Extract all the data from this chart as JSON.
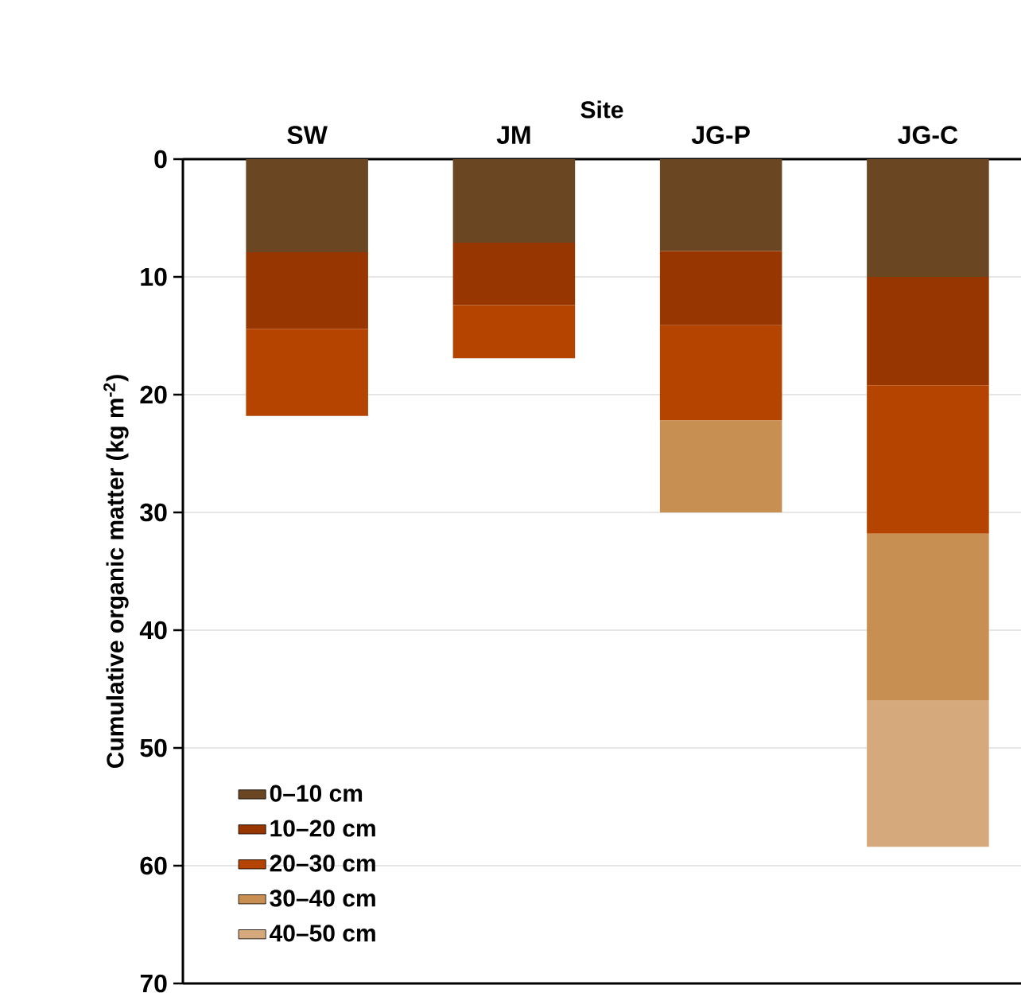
{
  "chart_data": {
    "type": "bar",
    "stacked": true,
    "xlabel": "Site",
    "ylabel": "Cumulative organic matter (kg m$^{-2}$)",
    "categories": [
      "SW",
      "JM",
      "JG-P",
      "JG-C"
    ],
    "series": [
      {
        "name": "0–10 cm",
        "color": "#6b4623",
        "values": [
          7.9,
          7.1,
          7.8,
          10.0
        ]
      },
      {
        "name": "10–20 cm",
        "color": "#983600",
        "values": [
          6.5,
          5.3,
          6.3,
          9.2
        ]
      },
      {
        "name": "20–30 cm",
        "color": "#b44400",
        "values": [
          7.4,
          4.5,
          8.1,
          12.6
        ]
      },
      {
        "name": "30–40 cm",
        "color": "#c88f52",
        "values": [
          null,
          null,
          7.8,
          14.2
        ]
      },
      {
        "name": "40–50 cm",
        "color": "#d6a97c",
        "values": [
          null,
          null,
          null,
          12.4
        ]
      }
    ],
    "ylim": [
      70,
      0
    ],
    "yticks": [
      0,
      10,
      20,
      30,
      40,
      50,
      60,
      70
    ],
    "grid": "y",
    "legend": "bottom left"
  }
}
